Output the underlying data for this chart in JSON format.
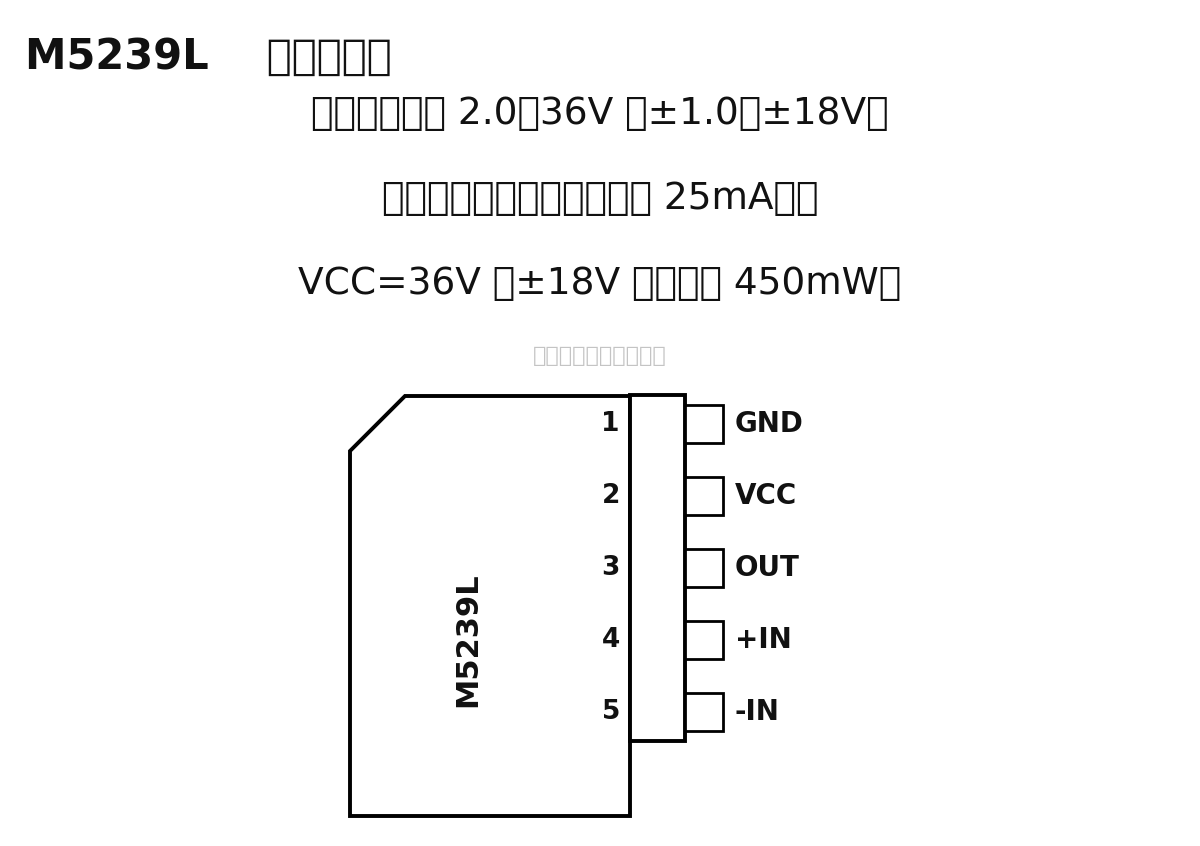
{
  "title": "M5239L    电压比较器",
  "line1": "工作电压范围 2.0～36V 或±1.0～±18V；",
  "line2": "开路集电极输出，输入电流 25mA；当",
  "line3": "VCC=36V 或±18V 时，功耗 450mW。",
  "watermark": "杭州将睷科技有限公司",
  "chip_label": "M5239L",
  "pins": [
    "GND",
    "VCC",
    "OUT",
    "+IN",
    "-IN"
  ],
  "pin_numbers": [
    "1",
    "2",
    "3",
    "4",
    "5"
  ],
  "bg_color": "#ffffff",
  "text_color": "#111111",
  "watermark_color": "#b0b0b0",
  "title_fontsize": 30,
  "body_fontsize": 27
}
